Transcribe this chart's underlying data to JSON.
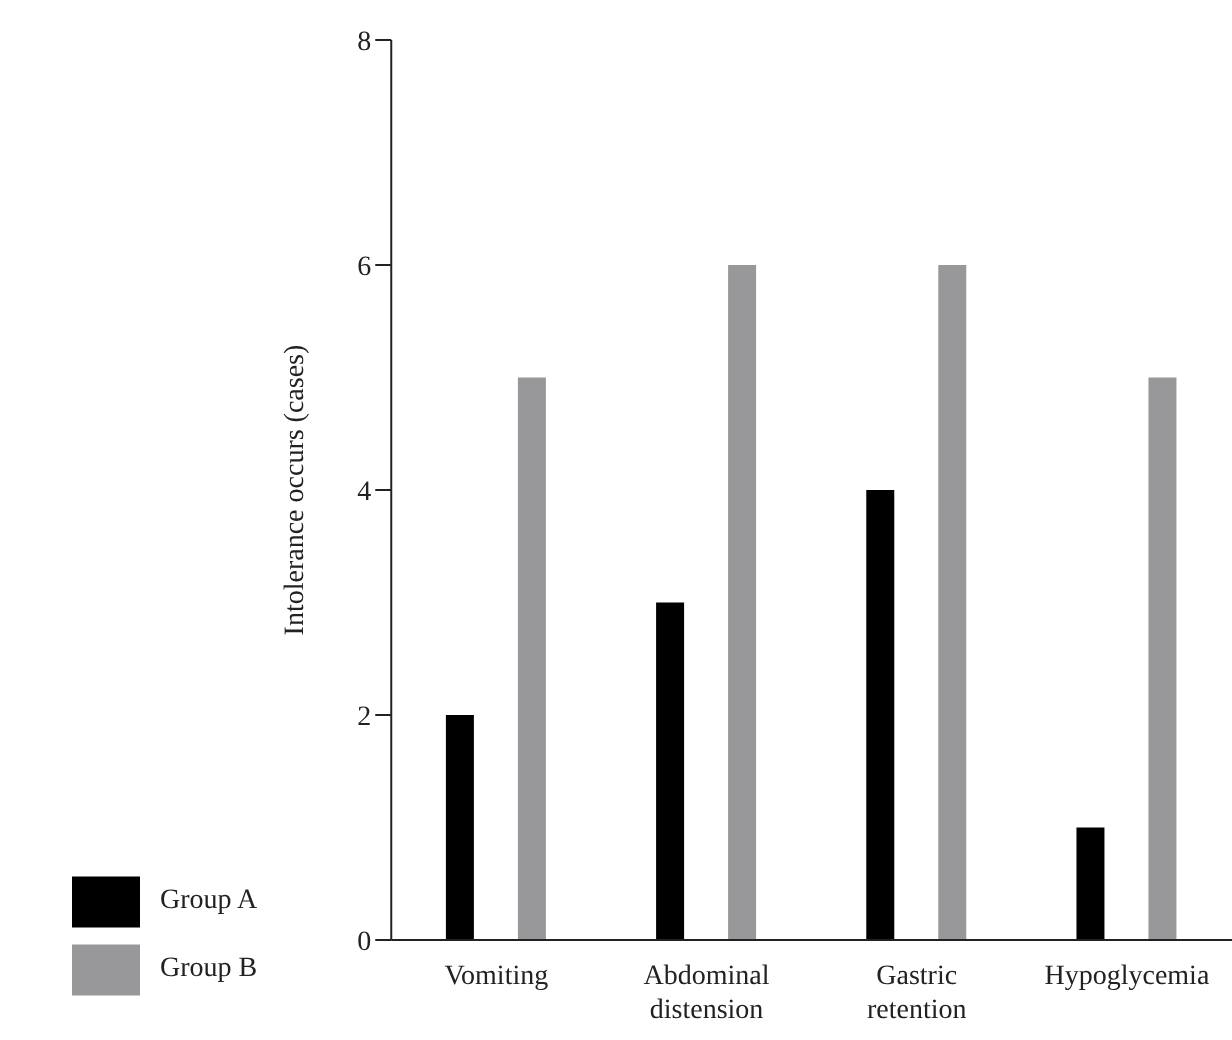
{
  "chart_data": {
    "type": "bar",
    "ylabel": "Intolerance occurs (cases)",
    "categories": [
      "Vomiting",
      "Abdominal distension",
      "Gastric retention",
      "Hypoglycemia"
    ],
    "series": [
      {
        "name": "Group A",
        "color": "#000000",
        "values": [
          2,
          3,
          4,
          1
        ]
      },
      {
        "name": "Group B",
        "color": "#98989a",
        "values": [
          5,
          6,
          6,
          5
        ]
      }
    ],
    "ylim": [
      0,
      8
    ],
    "yticks": [
      0,
      2,
      4,
      6,
      8
    ],
    "grid": false,
    "legend": "bottom left"
  }
}
